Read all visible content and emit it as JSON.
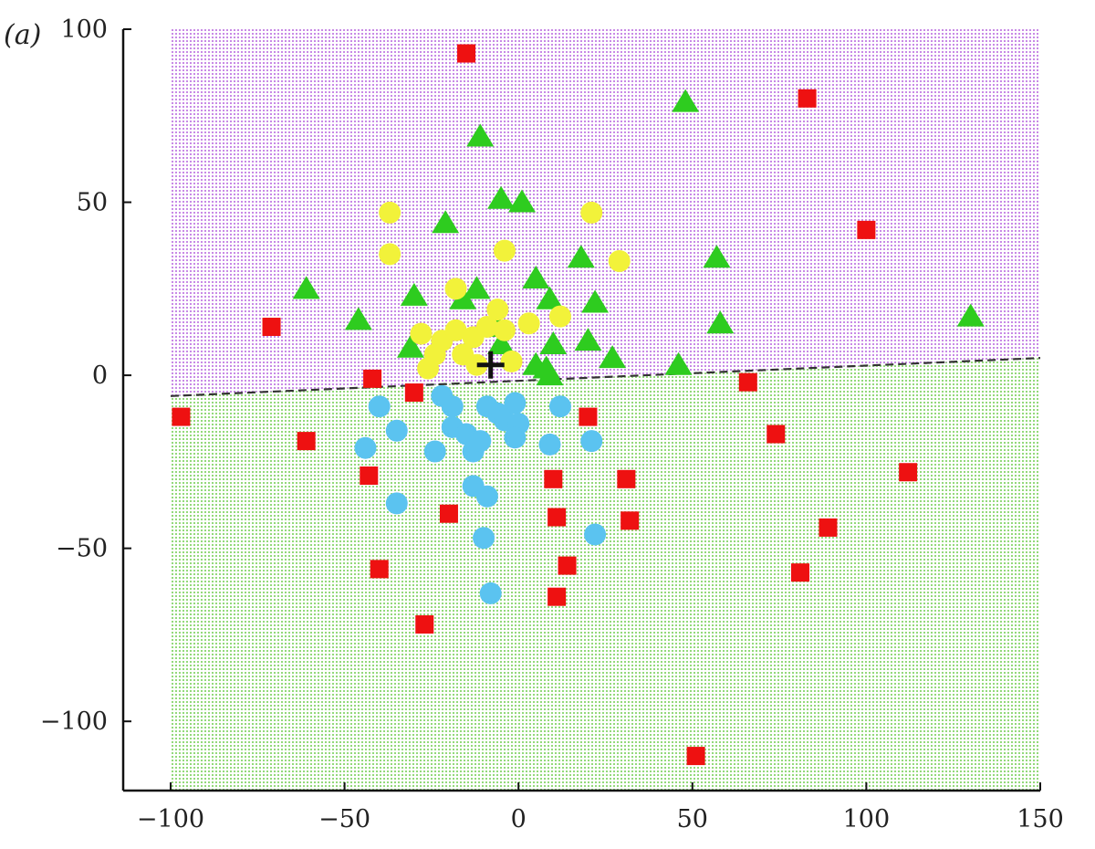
{
  "chart_data": {
    "type": "scatter",
    "panel_label": "(a)",
    "title": "",
    "xlabel": "",
    "ylabel": "",
    "xlim": [
      -100,
      150
    ],
    "ylim": [
      -120,
      100
    ],
    "x_ticks": [
      -100,
      -50,
      0,
      50,
      100,
      150
    ],
    "y_ticks": [
      -100,
      -50,
      0,
      50,
      100
    ],
    "x_tick_labels": [
      "−100",
      "−50",
      "0",
      "50",
      "100",
      "150"
    ],
    "y_tick_labels": [
      "−100",
      "−50",
      "0",
      "50",
      "100"
    ],
    "grid": false,
    "legend": "none",
    "colors": {
      "region_upper": "#c88ae6",
      "region_lower": "#93d97a",
      "boundary": "#333333",
      "red_squares": "#ee1111",
      "green_triangles": "#2ecc1f",
      "yellow_circles": "#f2f23a",
      "blue_circles": "#5bc3f0",
      "centroid": "#111111"
    },
    "boundary": {
      "x": [
        -100,
        150
      ],
      "y": [
        -6,
        5
      ]
    },
    "centroid": {
      "x": -8,
      "y": 3
    },
    "series": [
      {
        "marker": "square",
        "color": "#ee1111",
        "points": [
          [
            -15,
            93
          ],
          [
            83,
            80
          ],
          [
            100,
            42
          ],
          [
            -71,
            14
          ],
          [
            -42,
            -1
          ],
          [
            -30,
            -5
          ],
          [
            -97,
            -12
          ],
          [
            -61,
            -19
          ],
          [
            -43,
            -29
          ],
          [
            -20,
            -40
          ],
          [
            -40,
            -56
          ],
          [
            -27,
            -72
          ],
          [
            10,
            -30
          ],
          [
            11,
            -41
          ],
          [
            14,
            -55
          ],
          [
            11,
            -64
          ],
          [
            20,
            -12
          ],
          [
            31,
            -30
          ],
          [
            32,
            -42
          ],
          [
            66,
            -2
          ],
          [
            74,
            -17
          ],
          [
            89,
            -44
          ],
          [
            81,
            -57
          ],
          [
            112,
            -28
          ],
          [
            51,
            -110
          ]
        ]
      },
      {
        "marker": "triangle",
        "color": "#2ecc1f",
        "points": [
          [
            48,
            79
          ],
          [
            -11,
            69
          ],
          [
            -5,
            51
          ],
          [
            1,
            50
          ],
          [
            -21,
            44
          ],
          [
            -61,
            25
          ],
          [
            -46,
            16
          ],
          [
            -30,
            23
          ],
          [
            -16,
            22
          ],
          [
            -12,
            25
          ],
          [
            -31,
            8
          ],
          [
            -6,
            14
          ],
          [
            -5,
            9
          ],
          [
            5,
            28
          ],
          [
            9,
            22
          ],
          [
            18,
            34
          ],
          [
            22,
            21
          ],
          [
            57,
            34
          ],
          [
            58,
            15
          ],
          [
            130,
            17
          ],
          [
            10,
            9
          ],
          [
            20,
            10
          ],
          [
            27,
            5
          ],
          [
            46,
            3
          ],
          [
            5,
            3
          ],
          [
            8,
            2
          ],
          [
            9,
            0
          ]
        ]
      },
      {
        "marker": "circle",
        "color": "#f2f23a",
        "points": [
          [
            -37,
            47
          ],
          [
            -37,
            35
          ],
          [
            -4,
            36
          ],
          [
            21,
            47
          ],
          [
            29,
            33
          ],
          [
            -18,
            25
          ],
          [
            -28,
            12
          ],
          [
            -22,
            10
          ],
          [
            -18,
            13
          ],
          [
            -13,
            11
          ],
          [
            -9,
            14
          ],
          [
            -6,
            19
          ],
          [
            -4,
            13
          ],
          [
            -24,
            6
          ],
          [
            -16,
            6
          ],
          [
            -26,
            2
          ],
          [
            -12,
            3
          ],
          [
            12,
            17
          ],
          [
            3,
            15
          ],
          [
            -2,
            4
          ]
        ]
      },
      {
        "marker": "circle",
        "color": "#5bc3f0",
        "points": [
          [
            -40,
            -9
          ],
          [
            -35,
            -16
          ],
          [
            -44,
            -21
          ],
          [
            -35,
            -37
          ],
          [
            -22,
            -6
          ],
          [
            -19,
            -9
          ],
          [
            -24,
            -22
          ],
          [
            -19,
            -15
          ],
          [
            -15,
            -17
          ],
          [
            -13,
            -22
          ],
          [
            -11,
            -19
          ],
          [
            -9,
            -9
          ],
          [
            -6,
            -11
          ],
          [
            -4,
            -13
          ],
          [
            -1,
            -8
          ],
          [
            0,
            -14
          ],
          [
            -1,
            -18
          ],
          [
            -13,
            -32
          ],
          [
            -9,
            -35
          ],
          [
            -10,
            -47
          ],
          [
            -8,
            -63
          ],
          [
            9,
            -20
          ],
          [
            12,
            -9
          ],
          [
            21,
            -19
          ],
          [
            22,
            -46
          ]
        ]
      }
    ]
  }
}
